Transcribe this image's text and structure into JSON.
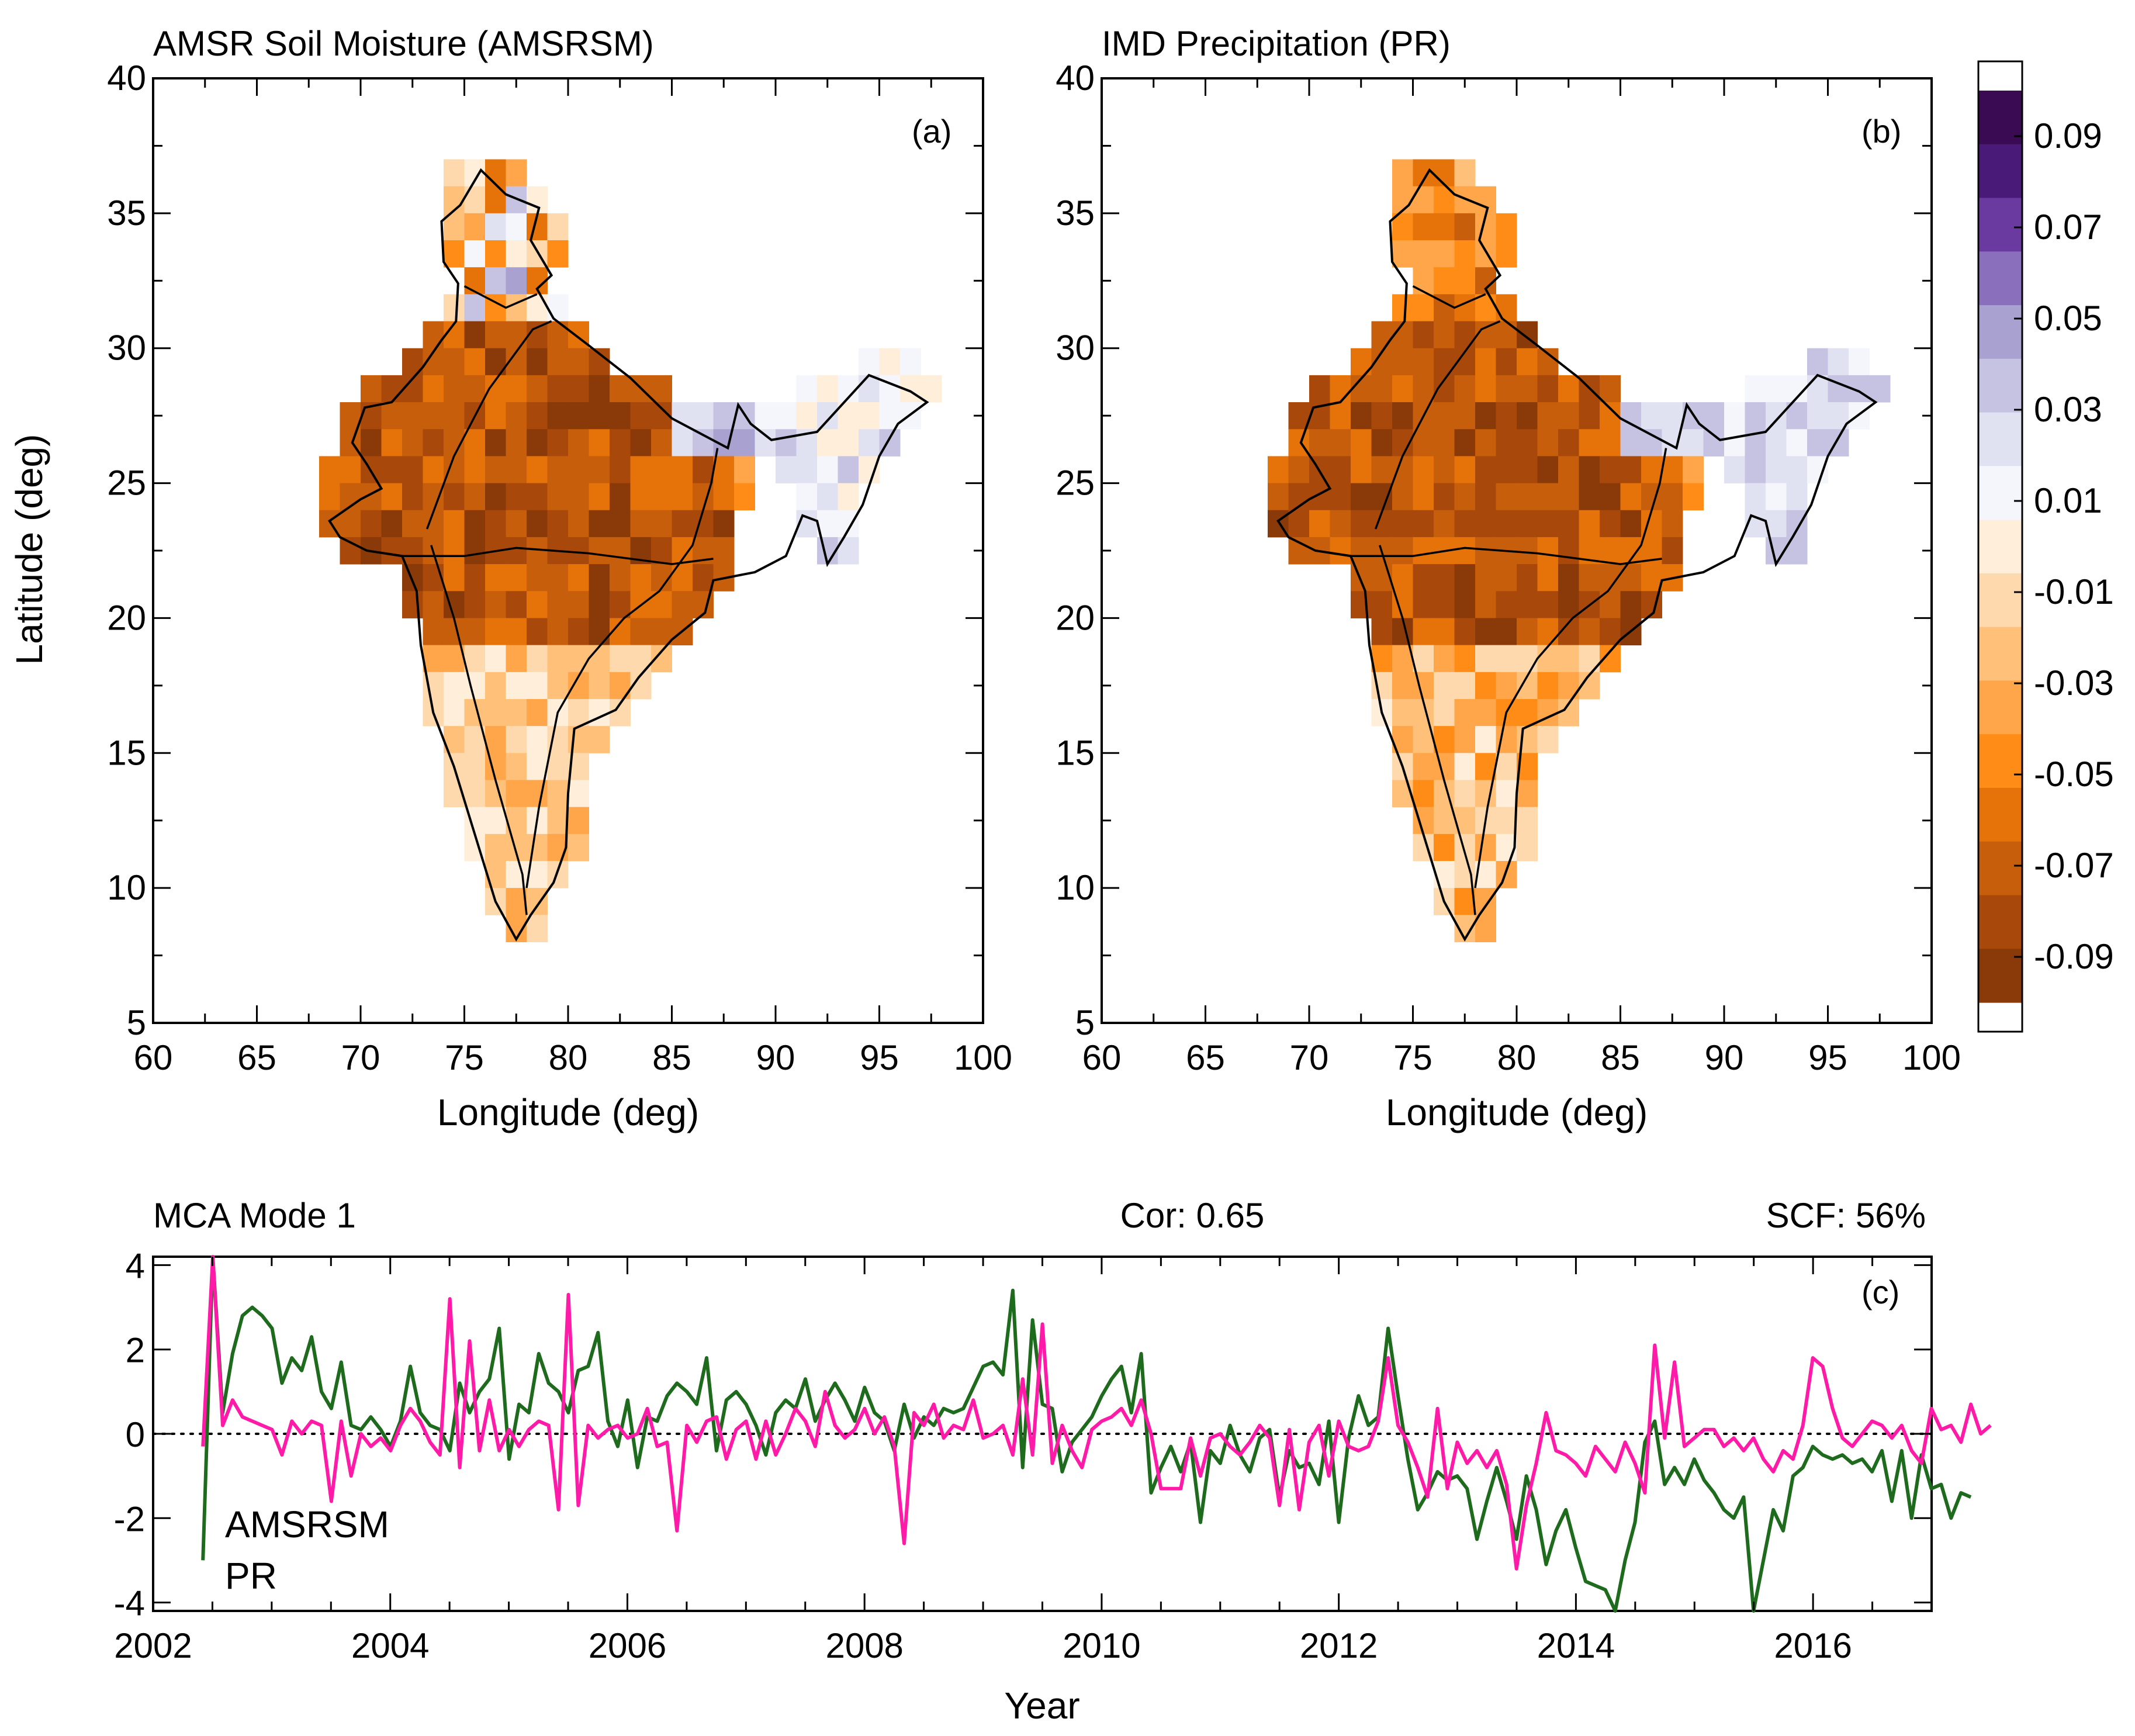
{
  "colors": {
    "amsrsm": "#1e6b1e",
    "pr": "#ff1aa8",
    "colorbar": [
      "#3a0a52",
      "#4a1a78",
      "#6a3aa0",
      "#8a70bc",
      "#a9a1d0",
      "#c6c3e2",
      "#e0e2f1",
      "#f5f6fb",
      "#ffeeda",
      "#ffd9ae",
      "#ffc07a",
      "#ffa64a",
      "#ff8c17",
      "#e6720a",
      "#c65e0c",
      "#a8480a",
      "#8a3a08"
    ]
  },
  "chart_data": [
    {
      "type": "heatmap",
      "panel_label": "(a)",
      "title": "AMSR Soil Moisture (AMSRSM)",
      "xlabel": "Longitude (deg)",
      "ylabel": "Latitude (deg)",
      "xlim": [
        60,
        100
      ],
      "ylim": [
        5,
        40
      ],
      "xticks": [
        "60",
        "65",
        "70",
        "75",
        "80",
        "85",
        "90",
        "95",
        "100"
      ],
      "yticks": [
        "5",
        "10",
        "15",
        "20",
        "25",
        "30",
        "35",
        "40"
      ],
      "pattern": "strong negative loadings (-0.05 to -0.1) over central and northwest India; weak to near zero loadings over the southern peninsula; weak positive loadings over northeast India and the eastern Himalaya"
    },
    {
      "type": "heatmap",
      "panel_label": "(b)",
      "title": "IMD Precipitation (PR)",
      "xlabel": "Longitude (deg)",
      "ylabel": "",
      "xlim": [
        60,
        100
      ],
      "ylim": [
        5,
        40
      ],
      "xticks": [
        "60",
        "65",
        "70",
        "75",
        "80",
        "85",
        "90",
        "95",
        "100"
      ],
      "yticks": [
        "5",
        "10",
        "15",
        "20",
        "25",
        "30",
        "35",
        "40"
      ],
      "pattern": "strong negative loadings over central and northwest India; moderate negative loadings over the southern peninsula; weak positive loadings over northeast India and Jammu and Kashmir"
    },
    {
      "type": "colorbar",
      "tick_labels": [
        "0.09",
        "0.07",
        "0.05",
        "0.03",
        "0.01",
        "-0.01",
        "-0.03",
        "-0.05",
        "-0.07",
        "-0.09"
      ],
      "range": [
        -0.1,
        0.1
      ]
    },
    {
      "type": "line",
      "panel_label": "(c)",
      "title": "MCA Mode 1",
      "correlation_text": "Cor: 0.65",
      "scf_text": "SCF:  56%",
      "xlabel": "Year",
      "ylabel": "",
      "xlim": [
        2002,
        2017
      ],
      "ylim": [
        -4.2,
        4.2
      ],
      "xticks": [
        "2002",
        "2004",
        "2006",
        "2008",
        "2010",
        "2012",
        "2014",
        "2016"
      ],
      "yticks": [
        "4",
        "2",
        "0",
        "-2",
        "-4"
      ],
      "reference_line": 0,
      "series": [
        {
          "name": "AMSRSM",
          "start": 2002.42,
          "step": 0.0833,
          "values": [
            -3.0,
            4.2,
            0.5,
            1.9,
            2.8,
            3.0,
            2.8,
            2.5,
            1.2,
            1.8,
            1.5,
            2.3,
            1.0,
            0.6,
            1.7,
            0.2,
            0.1,
            0.4,
            0.1,
            -0.3,
            0.3,
            1.6,
            0.5,
            0.2,
            0.1,
            -0.4,
            1.2,
            0.5,
            1.0,
            1.3,
            2.5,
            -0.6,
            0.7,
            0.5,
            1.9,
            1.2,
            1.0,
            0.5,
            1.5,
            1.6,
            2.4,
            0.3,
            -0.3,
            0.8,
            -0.8,
            0.4,
            0.3,
            0.9,
            1.2,
            1.0,
            0.7,
            1.8,
            -0.4,
            0.8,
            1.0,
            0.7,
            0.2,
            -0.5,
            0.5,
            0.8,
            0.6,
            1.3,
            0.3,
            0.8,
            1.2,
            0.8,
            0.3,
            1.1,
            0.5,
            0.3,
            -0.4,
            0.7,
            -0.1,
            0.4,
            0.2,
            0.6,
            0.5,
            0.6,
            1.1,
            1.6,
            1.7,
            1.4,
            3.4,
            -0.8,
            2.7,
            0.7,
            0.6,
            -0.9,
            -0.2,
            0.1,
            0.4,
            0.9,
            1.3,
            1.6,
            0.5,
            1.9,
            -1.4,
            -0.8,
            -0.3,
            -0.9,
            -0.2,
            -2.1,
            -0.4,
            -0.7,
            0.2,
            -0.5,
            -0.9,
            -0.1,
            0.1,
            -1.5,
            -0.4,
            -0.8,
            -0.7,
            -1.2,
            0.3,
            -2.1,
            -0.1,
            0.9,
            0.2,
            0.4,
            2.5,
            0.9,
            -0.6,
            -1.8,
            -1.4,
            -0.9,
            -1.1,
            -1.0,
            -1.3,
            -2.5,
            -1.6,
            -0.8,
            -1.6,
            -2.5,
            -1.0,
            -1.8,
            -3.1,
            -2.3,
            -1.8,
            -2.7,
            -3.5,
            -3.6,
            -3.7,
            -4.3,
            -3.0,
            -2.1,
            -0.2,
            0.3,
            -1.2,
            -0.8,
            -1.2,
            -0.6,
            -1.1,
            -1.4,
            -1.8,
            -2.0,
            -1.5,
            -4.3,
            -3.0,
            -1.8,
            -2.3,
            -1.0,
            -0.8,
            -0.3,
            -0.5,
            -0.6,
            -0.5,
            -0.7,
            -0.6,
            -0.9,
            -0.4,
            -1.6,
            -0.4,
            -2.0,
            -0.5,
            -1.3,
            -1.2,
            -2.0,
            -1.4,
            -1.5
          ]
        },
        {
          "name": "PR",
          "start": 2002.42,
          "step": 0.0833,
          "values": [
            -0.3,
            4.2,
            0.2,
            0.8,
            0.4,
            0.3,
            0.2,
            0.1,
            -0.5,
            0.3,
            0.0,
            0.3,
            0.2,
            -1.6,
            0.3,
            -1.0,
            0.0,
            -0.3,
            -0.1,
            -0.4,
            0.2,
            0.6,
            0.3,
            -0.2,
            -0.5,
            3.2,
            -0.8,
            2.2,
            -0.4,
            0.8,
            -0.4,
            0.1,
            -0.3,
            0.1,
            0.3,
            0.2,
            -1.8,
            3.3,
            -1.7,
            0.2,
            -0.1,
            0.1,
            0.2,
            -0.1,
            0.0,
            0.6,
            -0.3,
            -0.2,
            -2.3,
            0.2,
            -0.2,
            0.3,
            0.4,
            -0.6,
            0.1,
            0.3,
            -0.6,
            0.3,
            -0.5,
            0.0,
            0.6,
            0.3,
            -0.3,
            1.0,
            0.2,
            -0.1,
            0.1,
            0.6,
            0.0,
            0.4,
            -0.3,
            -2.6,
            0.5,
            0.2,
            0.7,
            -0.1,
            0.2,
            0.1,
            0.8,
            -0.1,
            0.0,
            0.2,
            -0.5,
            1.3,
            -0.5,
            2.6,
            -0.7,
            0.2,
            -0.4,
            -0.8,
            0.1,
            0.3,
            0.4,
            0.6,
            0.2,
            0.8,
            0.0,
            -1.3,
            -1.3,
            -1.3,
            -0.1,
            -1.0,
            -0.1,
            0.0,
            -0.3,
            -0.5,
            -0.2,
            0.2,
            -0.1,
            -1.7,
            0.1,
            -1.8,
            -0.2,
            0.2,
            -1.0,
            0.3,
            -0.3,
            -0.4,
            -0.3,
            0.3,
            1.8,
            0.2,
            -0.2,
            -0.8,
            -1.5,
            0.6,
            -1.3,
            -0.2,
            -0.7,
            -0.4,
            -0.8,
            -0.4,
            -1.2,
            -3.2,
            -1.7,
            -0.7,
            0.5,
            -0.4,
            -0.5,
            -0.7,
            -1.0,
            -0.3,
            -0.6,
            -0.9,
            -0.2,
            -0.7,
            -1.4,
            2.1,
            -0.1,
            1.7,
            -0.3,
            -0.1,
            0.1,
            0.1,
            -0.3,
            -0.1,
            -0.4,
            -0.1,
            -0.6,
            -0.9,
            -0.4,
            -0.6,
            0.2,
            1.8,
            1.6,
            0.6,
            -0.1,
            -0.3,
            0.0,
            0.3,
            0.2,
            -0.1,
            0.2,
            -0.4,
            -0.7,
            0.6,
            0.1,
            0.2,
            -0.2,
            0.7,
            0.0,
            0.2
          ]
        }
      ]
    }
  ]
}
